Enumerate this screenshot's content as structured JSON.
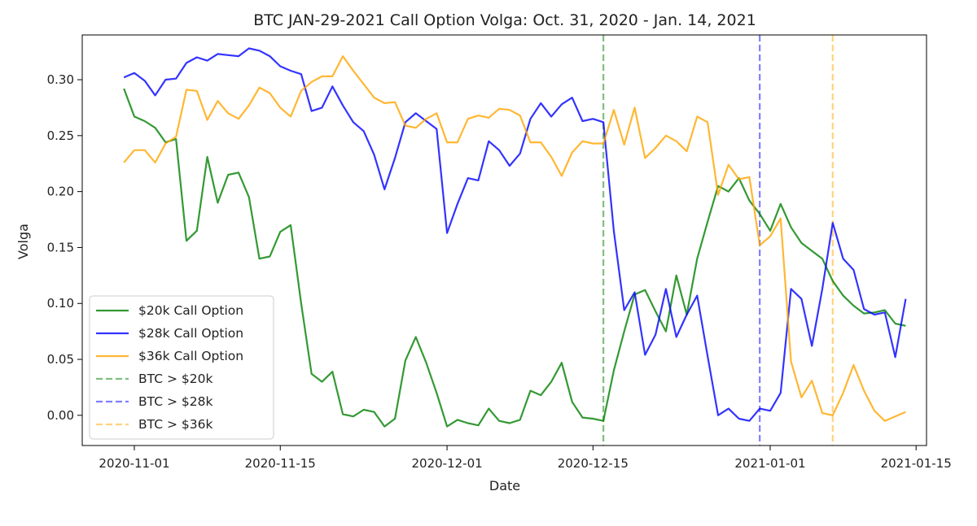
{
  "chart_data": {
    "type": "line",
    "title": "BTC JAN-29-2021 Call Option Volga: Oct. 31, 2020 - Jan. 14, 2021",
    "xlabel": "Date",
    "ylabel": "Volga",
    "xlim": [
      "2020-10-27",
      "2021-01-16"
    ],
    "ylim": [
      -0.027,
      0.34
    ],
    "x_ticks": [
      "2020-11-01",
      "2020-11-15",
      "2020-12-01",
      "2020-12-15",
      "2021-01-01",
      "2021-01-15"
    ],
    "y_ticks": [
      0.0,
      0.05,
      0.1,
      0.15,
      0.2,
      0.25,
      0.3
    ],
    "y_tick_labels": [
      "0.00",
      "0.05",
      "0.10",
      "0.15",
      "0.20",
      "0.25",
      "0.30"
    ],
    "legend_position": "lower-left",
    "grid": false,
    "x": [
      "2020-10-31",
      "2020-11-01",
      "2020-11-02",
      "2020-11-03",
      "2020-11-04",
      "2020-11-05",
      "2020-11-06",
      "2020-11-07",
      "2020-11-08",
      "2020-11-09",
      "2020-11-10",
      "2020-11-11",
      "2020-11-12",
      "2020-11-13",
      "2020-11-14",
      "2020-11-15",
      "2020-11-16",
      "2020-11-17",
      "2020-11-18",
      "2020-11-19",
      "2020-11-20",
      "2020-11-21",
      "2020-11-22",
      "2020-11-23",
      "2020-11-24",
      "2020-11-25",
      "2020-11-26",
      "2020-11-27",
      "2020-11-28",
      "2020-11-29",
      "2020-11-30",
      "2020-12-01",
      "2020-12-02",
      "2020-12-03",
      "2020-12-04",
      "2020-12-05",
      "2020-12-06",
      "2020-12-07",
      "2020-12-08",
      "2020-12-09",
      "2020-12-10",
      "2020-12-11",
      "2020-12-12",
      "2020-12-13",
      "2020-12-14",
      "2020-12-15",
      "2020-12-16",
      "2020-12-17",
      "2020-12-18",
      "2020-12-19",
      "2020-12-20",
      "2020-12-21",
      "2020-12-22",
      "2020-12-23",
      "2020-12-24",
      "2020-12-25",
      "2020-12-26",
      "2020-12-27",
      "2020-12-28",
      "2020-12-29",
      "2020-12-30",
      "2020-12-31",
      "2021-01-01",
      "2021-01-02",
      "2021-01-03",
      "2021-01-04",
      "2021-01-05",
      "2021-01-06",
      "2021-01-07",
      "2021-01-08",
      "2021-01-09",
      "2021-01-10",
      "2021-01-11",
      "2021-01-12",
      "2021-01-13",
      "2021-01-14"
    ],
    "series": [
      {
        "name": "$20k Call Option",
        "color": "#008000",
        "values": [
          0.292,
          0.267,
          0.263,
          0.257,
          0.244,
          0.247,
          0.156,
          0.165,
          0.231,
          0.19,
          0.215,
          0.217,
          0.195,
          0.14,
          0.142,
          0.164,
          0.17,
          0.1,
          0.037,
          0.03,
          0.039,
          0.001,
          -0.001,
          0.005,
          0.003,
          -0.01,
          -0.003,
          0.049,
          0.07,
          0.047,
          0.02,
          -0.01,
          -0.004,
          -0.007,
          -0.009,
          0.006,
          -0.005,
          -0.007,
          -0.004,
          0.022,
          0.018,
          0.03,
          0.047,
          0.012,
          -0.002,
          -0.003,
          -0.005,
          0.04,
          0.075,
          0.108,
          0.112,
          0.093,
          0.075,
          0.125,
          0.09,
          0.14,
          0.173,
          0.205,
          0.2,
          0.212,
          0.192,
          0.18,
          0.165,
          0.189,
          0.168,
          0.154,
          0.147,
          0.14,
          0.12,
          0.107,
          0.098,
          0.091,
          0.092,
          0.094,
          0.082,
          0.08
        ]
      },
      {
        "name": "$28k Call Option",
        "color": "#0000ff",
        "values": [
          0.302,
          0.306,
          0.299,
          0.286,
          0.3,
          0.301,
          0.315,
          0.32,
          0.317,
          0.323,
          0.322,
          0.321,
          0.328,
          0.326,
          0.321,
          0.312,
          0.308,
          0.305,
          0.272,
          0.275,
          0.294,
          0.277,
          0.262,
          0.254,
          0.233,
          0.202,
          0.23,
          0.262,
          0.27,
          0.263,
          0.256,
          0.163,
          0.189,
          0.212,
          0.21,
          0.245,
          0.237,
          0.223,
          0.234,
          0.265,
          0.279,
          0.267,
          0.278,
          0.284,
          0.263,
          0.265,
          0.262,
          0.165,
          0.094,
          0.11,
          0.054,
          0.072,
          0.113,
          0.07,
          0.09,
          0.107,
          0.053,
          0.0,
          0.006,
          -0.003,
          -0.005,
          0.006,
          0.004,
          0.02,
          0.113,
          0.104,
          0.062,
          0.113,
          0.172,
          0.14,
          0.13,
          0.095,
          0.09,
          0.092,
          0.052,
          0.104
        ]
      },
      {
        "name": "$36k Call Option",
        "color": "#ffa500",
        "values": [
          0.226,
          0.237,
          0.237,
          0.226,
          0.243,
          0.249,
          0.291,
          0.29,
          0.264,
          0.281,
          0.27,
          0.265,
          0.277,
          0.293,
          0.288,
          0.275,
          0.267,
          0.29,
          0.298,
          0.303,
          0.303,
          0.321,
          0.308,
          0.296,
          0.284,
          0.279,
          0.28,
          0.259,
          0.257,
          0.265,
          0.27,
          0.244,
          0.244,
          0.265,
          0.268,
          0.266,
          0.274,
          0.273,
          0.268,
          0.244,
          0.244,
          0.231,
          0.214,
          0.235,
          0.245,
          0.243,
          0.243,
          0.273,
          0.242,
          0.275,
          0.23,
          0.239,
          0.25,
          0.245,
          0.236,
          0.267,
          0.262,
          0.197,
          0.224,
          0.211,
          0.213,
          0.152,
          0.16,
          0.176,
          0.048,
          0.016,
          0.031,
          0.002,
          0.0,
          0.02,
          0.045,
          0.022,
          0.004,
          -0.005,
          -0.001,
          0.003
        ]
      }
    ],
    "threshold_lines": [
      {
        "name": "BTC > $20k",
        "date": "2020-12-16",
        "color": "#008000"
      },
      {
        "name": "BTC > $28k",
        "date": "2020-12-31",
        "color": "#0000ff"
      },
      {
        "name": "BTC > $36k",
        "date": "2021-01-07",
        "color": "#ffa500"
      }
    ]
  }
}
